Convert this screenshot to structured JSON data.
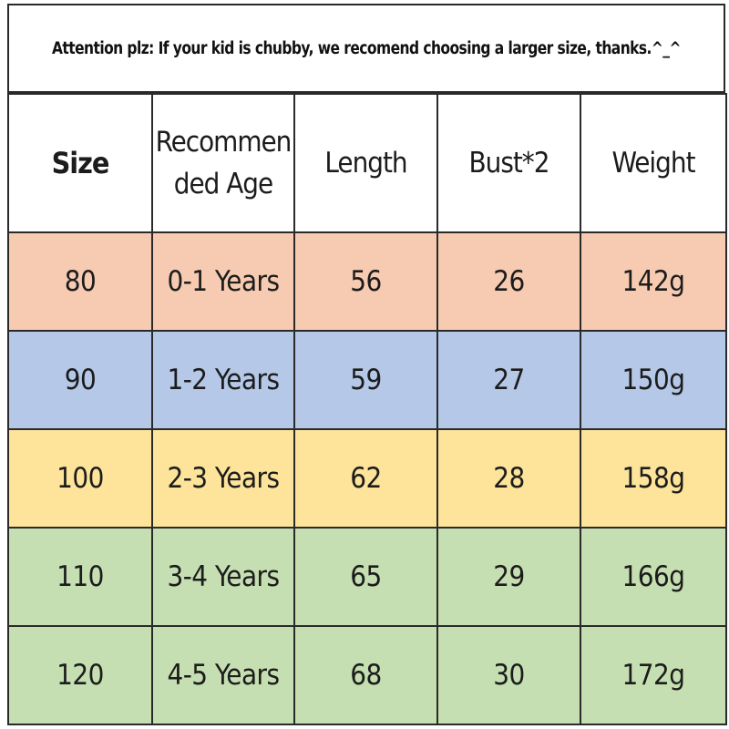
{
  "notice": {
    "text": "Attention plz: If your kid is chubby, we recomend choosing a larger size, thanks.^_^"
  },
  "table": {
    "headers": [
      "Size",
      "Recommended Age",
      "Length",
      "Bust*2",
      "Weight"
    ],
    "rows": [
      {
        "size": "80",
        "age": "0-1 Years",
        "length": "56",
        "bust": "26",
        "weight": "142g",
        "color": "#f7cbb2"
      },
      {
        "size": "90",
        "age": "1-2 Years",
        "length": "59",
        "bust": "27",
        "weight": "150g",
        "color": "#b5c8e8"
      },
      {
        "size": "100",
        "age": "2-3 Years",
        "length": "62",
        "bust": "28",
        "weight": "158g",
        "color": "#fde49a"
      },
      {
        "size": "110",
        "age": "3-4 Years",
        "length": "65",
        "bust": "29",
        "weight": "166g",
        "color": "#c6dfb2"
      },
      {
        "size": "120",
        "age": "4-5 Years",
        "length": "68",
        "bust": "30",
        "weight": "172g",
        "color": "#c6dfb2"
      }
    ]
  }
}
